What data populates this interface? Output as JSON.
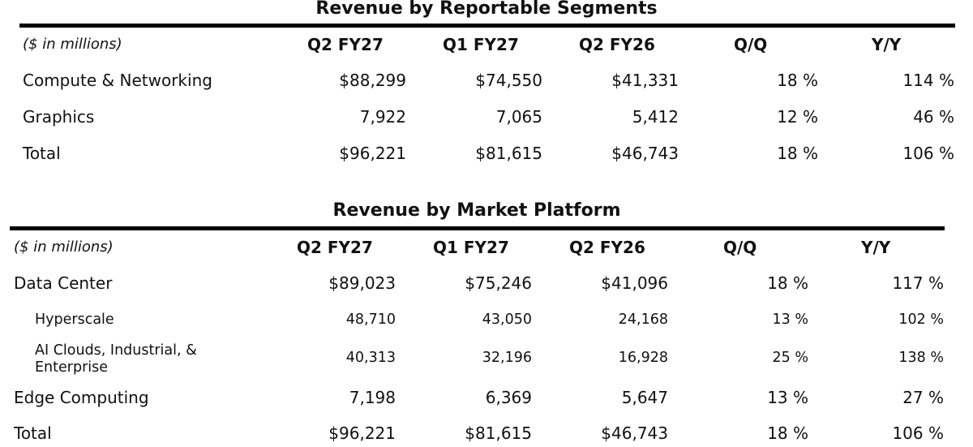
{
  "segments": {
    "title": "Revenue by Reportable Segments",
    "units_label": "($ in millions)",
    "columns": [
      "Q2 FY27",
      "Q1 FY27",
      "Q2 FY26",
      "Q/Q",
      "Y/Y"
    ],
    "rows": [
      {
        "label": "Compute & Networking",
        "values": [
          "$88,299",
          "$74,550",
          "$41,331",
          "18 %",
          "114 %"
        ]
      },
      {
        "label": "Graphics",
        "values": [
          "7,922",
          "7,065",
          "5,412",
          "12 %",
          "46 %"
        ]
      },
      {
        "label": "Total",
        "values": [
          "$96,221",
          "$81,615",
          "$46,743",
          "18 %",
          "106 %"
        ]
      }
    ]
  },
  "platform": {
    "title": "Revenue by Market Platform",
    "units_label": "($ in millions)",
    "columns": [
      "Q2 FY27",
      "Q1 FY27",
      "Q2 FY26",
      "Q/Q",
      "Y/Y"
    ],
    "rows": [
      {
        "label": "Data Center",
        "values": [
          "$89,023",
          "$75,246",
          "$41,096",
          "18 %",
          "117 %"
        ]
      },
      {
        "label": "Hyperscale",
        "values": [
          "48,710",
          "43,050",
          "24,168",
          "13 %",
          "102 %"
        ]
      },
      {
        "label": "AI Clouds, Industrial, & Enterprise",
        "values": [
          "40,313",
          "32,196",
          "16,928",
          "25 %",
          "138 %"
        ]
      },
      {
        "label": "Edge Computing",
        "values": [
          "7,198",
          "6,369",
          "5,647",
          "13 %",
          "27 %"
        ]
      },
      {
        "label": "Total",
        "values": [
          "$96,221",
          "$81,615",
          "$46,743",
          "18 %",
          "106 %"
        ]
      }
    ]
  }
}
